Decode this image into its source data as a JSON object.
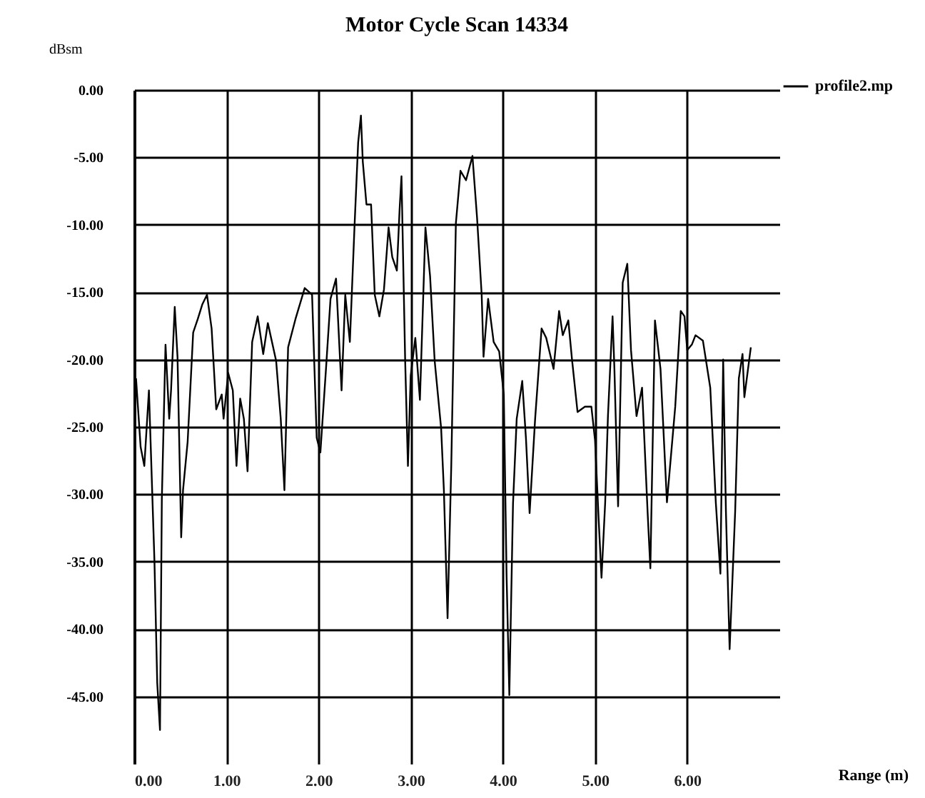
{
  "chart_data": {
    "type": "line",
    "title": "Motor Cycle Scan 14334",
    "xlabel": "Range (m)",
    "ylabel": "dBsm",
    "xlim": [
      0,
      7
    ],
    "ylim": [
      -50,
      0
    ],
    "xticks": [
      {
        "value": 0,
        "label": "0.00"
      },
      {
        "value": 1,
        "label": "1.00"
      },
      {
        "value": 2,
        "label": "2.00"
      },
      {
        "value": 3,
        "label": "3.00"
      },
      {
        "value": 4,
        "label": "4.00"
      },
      {
        "value": 5,
        "label": "5.00"
      },
      {
        "value": 6,
        "label": "6.00"
      }
    ],
    "yticks": [
      {
        "value": 0,
        "label": "0.00"
      },
      {
        "value": -5,
        "label": "-5.00"
      },
      {
        "value": -10,
        "label": "-10.00"
      },
      {
        "value": -15,
        "label": "-15.00"
      },
      {
        "value": -20,
        "label": "-20.00"
      },
      {
        "value": -25,
        "label": "-25.00"
      },
      {
        "value": -30,
        "label": "-30.00"
      },
      {
        "value": -35,
        "label": "-35.00"
      },
      {
        "value": -40,
        "label": "-40.00"
      },
      {
        "value": -45,
        "label": "-45.00"
      }
    ],
    "grid": true,
    "legend": "top right",
    "marker": "none",
    "line_style": "solid",
    "series": [
      {
        "name": "profile2.mp",
        "color": "#000000",
        "x": [
          0.02,
          0.07,
          0.11,
          0.16,
          0.22,
          0.25,
          0.28,
          0.3,
          0.34,
          0.38,
          0.4,
          0.44,
          0.47,
          0.51,
          0.53,
          0.58,
          0.64,
          0.69,
          0.74,
          0.79,
          0.84,
          0.89,
          0.95,
          0.97,
          1.02,
          1.07,
          1.11,
          1.15,
          1.19,
          1.23,
          1.28,
          1.34,
          1.4,
          1.45,
          1.54,
          1.59,
          1.63,
          1.67,
          1.75,
          1.85,
          1.93,
          1.98,
          2.02,
          2.08,
          2.13,
          2.19,
          2.25,
          2.29,
          2.34,
          2.39,
          2.43,
          2.46,
          2.48,
          2.52,
          2.57,
          2.61,
          2.66,
          2.71,
          2.76,
          2.8,
          2.85,
          2.88,
          2.9,
          2.94,
          2.97,
          3.0,
          3.05,
          3.1,
          3.16,
          3.21,
          3.26,
          3.33,
          3.36,
          3.4,
          3.44,
          3.49,
          3.54,
          3.6,
          3.67,
          3.72,
          3.77,
          3.79,
          3.84,
          3.9,
          3.96,
          4.01,
          4.04,
          4.07,
          4.11,
          4.15,
          4.21,
          4.25,
          4.29,
          4.35,
          4.42,
          4.47,
          4.55,
          4.61,
          4.65,
          4.71,
          4.75,
          4.81,
          4.89,
          4.96,
          5.0,
          5.04,
          5.07,
          5.11,
          5.14,
          5.19,
          5.21,
          5.25,
          5.3,
          5.35,
          5.39,
          5.45,
          5.51,
          5.57,
          5.6,
          5.65,
          5.71,
          5.78,
          5.87,
          5.93,
          5.97,
          6.0,
          6.05,
          6.09,
          6.17,
          6.25,
          6.31,
          6.36,
          6.39,
          6.42,
          6.46,
          6.52,
          6.56,
          6.6,
          6.62,
          6.69
        ],
        "values": [
          -21.4,
          -26.5,
          -27.9,
          -22.3,
          -35,
          -44,
          -47.5,
          -30.4,
          -18.9,
          -24.4,
          -22.3,
          -16.1,
          -19.8,
          -33.2,
          -29.7,
          -26.1,
          -18,
          -17,
          -15.9,
          -15.2,
          -17.7,
          -23.7,
          -22.6,
          -24.4,
          -21,
          -22.3,
          -27.9,
          -22.9,
          -24.4,
          -28.3,
          -18.7,
          -16.8,
          -19.6,
          -17.3,
          -20.1,
          -24.4,
          -29.7,
          -19.1,
          -17,
          -14.7,
          -15.2,
          -25.8,
          -26.9,
          -20.8,
          -15.5,
          -14,
          -22.3,
          -15.2,
          -18.7,
          -10.2,
          -3.9,
          -1.9,
          -5.3,
          -8.5,
          -8.5,
          -15.2,
          -16.8,
          -14.8,
          -10.2,
          -12.4,
          -13.4,
          -8.8,
          -6.4,
          -20.1,
          -27.9,
          -21.2,
          -18.4,
          -23,
          -10.2,
          -13.8,
          -20.1,
          -25.1,
          -29.7,
          -39.2,
          -27.9,
          -9.9,
          -6,
          -6.7,
          -4.9,
          -9.5,
          -15.2,
          -19.8,
          -15.5,
          -18.7,
          -19.4,
          -22.6,
          -36,
          -44.9,
          -30.7,
          -24.4,
          -21.6,
          -25.8,
          -31.4,
          -24.4,
          -17.7,
          -18.4,
          -20.7,
          -16.4,
          -18.2,
          -17.1,
          -20,
          -23.9,
          -23.5,
          -23.5,
          -26,
          -32,
          -36.2,
          -30.6,
          -24.2,
          -16.8,
          -20.7,
          -30.9,
          -14.3,
          -12.9,
          -19.3,
          -24.2,
          -22.1,
          -31.3,
          -35.5,
          -17.1,
          -20.7,
          -30.6,
          -23.5,
          -16.4,
          -16.8,
          -19.3,
          -18.9,
          -18.2,
          -18.6,
          -22.1,
          -30.6,
          -35.9,
          -20,
          -31.3,
          -41.5,
          -31.3,
          -21.4,
          -19.6,
          -22.8,
          -19.1
        ]
      }
    ]
  }
}
